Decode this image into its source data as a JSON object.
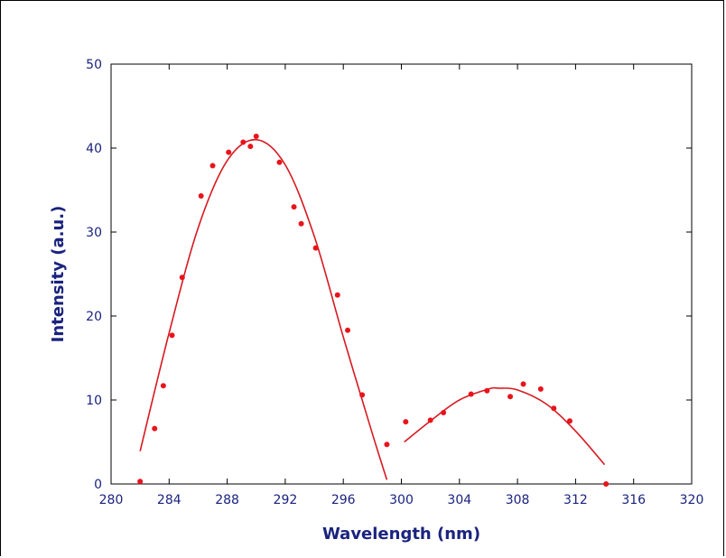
{
  "chart_data": {
    "type": "scatter",
    "title": "",
    "xlabel": "Wavelength (nm)",
    "ylabel": "Intensity (a.u.)",
    "xlim": [
      280,
      320
    ],
    "ylim": [
      0,
      50
    ],
    "x_ticks": [
      "280",
      "284",
      "288",
      "292",
      "296",
      "300",
      "304",
      "308",
      "312",
      "316",
      "320"
    ],
    "y_ticks": [
      "0",
      "10",
      "20",
      "30",
      "40",
      "50"
    ],
    "grid": false,
    "legend": "none",
    "colors": {
      "points": "#e8141b",
      "fit": "#d71920",
      "axis_text": "#1a237e",
      "axis": "#000000"
    },
    "series": [
      {
        "kind": "points",
        "x": [
          282.0,
          283.0,
          283.6,
          284.2,
          284.9,
          286.2,
          287.0,
          288.1,
          289.1,
          289.6,
          290.0,
          291.6,
          292.6,
          293.1,
          294.1,
          295.6,
          296.3,
          297.3,
          299.0,
          300.3,
          302.0,
          302.9,
          304.8,
          305.9,
          307.5,
          308.4,
          309.6,
          310.5,
          311.6,
          314.1
        ],
        "y": [
          0.3,
          6.6,
          11.7,
          17.7,
          24.6,
          34.3,
          37.9,
          39.5,
          40.7,
          40.2,
          41.4,
          38.3,
          33.0,
          31.0,
          28.1,
          22.5,
          18.3,
          10.6,
          4.7,
          7.4,
          7.6,
          8.5,
          10.7,
          11.1,
          10.4,
          11.9,
          11.3,
          9.0,
          7.5,
          0.0
        ]
      },
      {
        "kind": "fit",
        "x": [
          282.0,
          284.0,
          286.0,
          288.0,
          290.0,
          292.0,
          294.0,
          296.0,
          298.0,
          299.0
        ],
        "y": [
          3.9,
          18.0,
          30.5,
          38.5,
          41.0,
          38.0,
          29.5,
          17.5,
          6.0,
          0.5
        ]
      },
      {
        "kind": "fit",
        "x": [
          300.2,
          302.0,
          304.0,
          306.0,
          306.7,
          308.0,
          310.0,
          312.0,
          314.0
        ],
        "y": [
          5.0,
          7.5,
          10.0,
          11.3,
          11.4,
          11.2,
          9.5,
          6.3,
          2.3
        ]
      }
    ]
  }
}
